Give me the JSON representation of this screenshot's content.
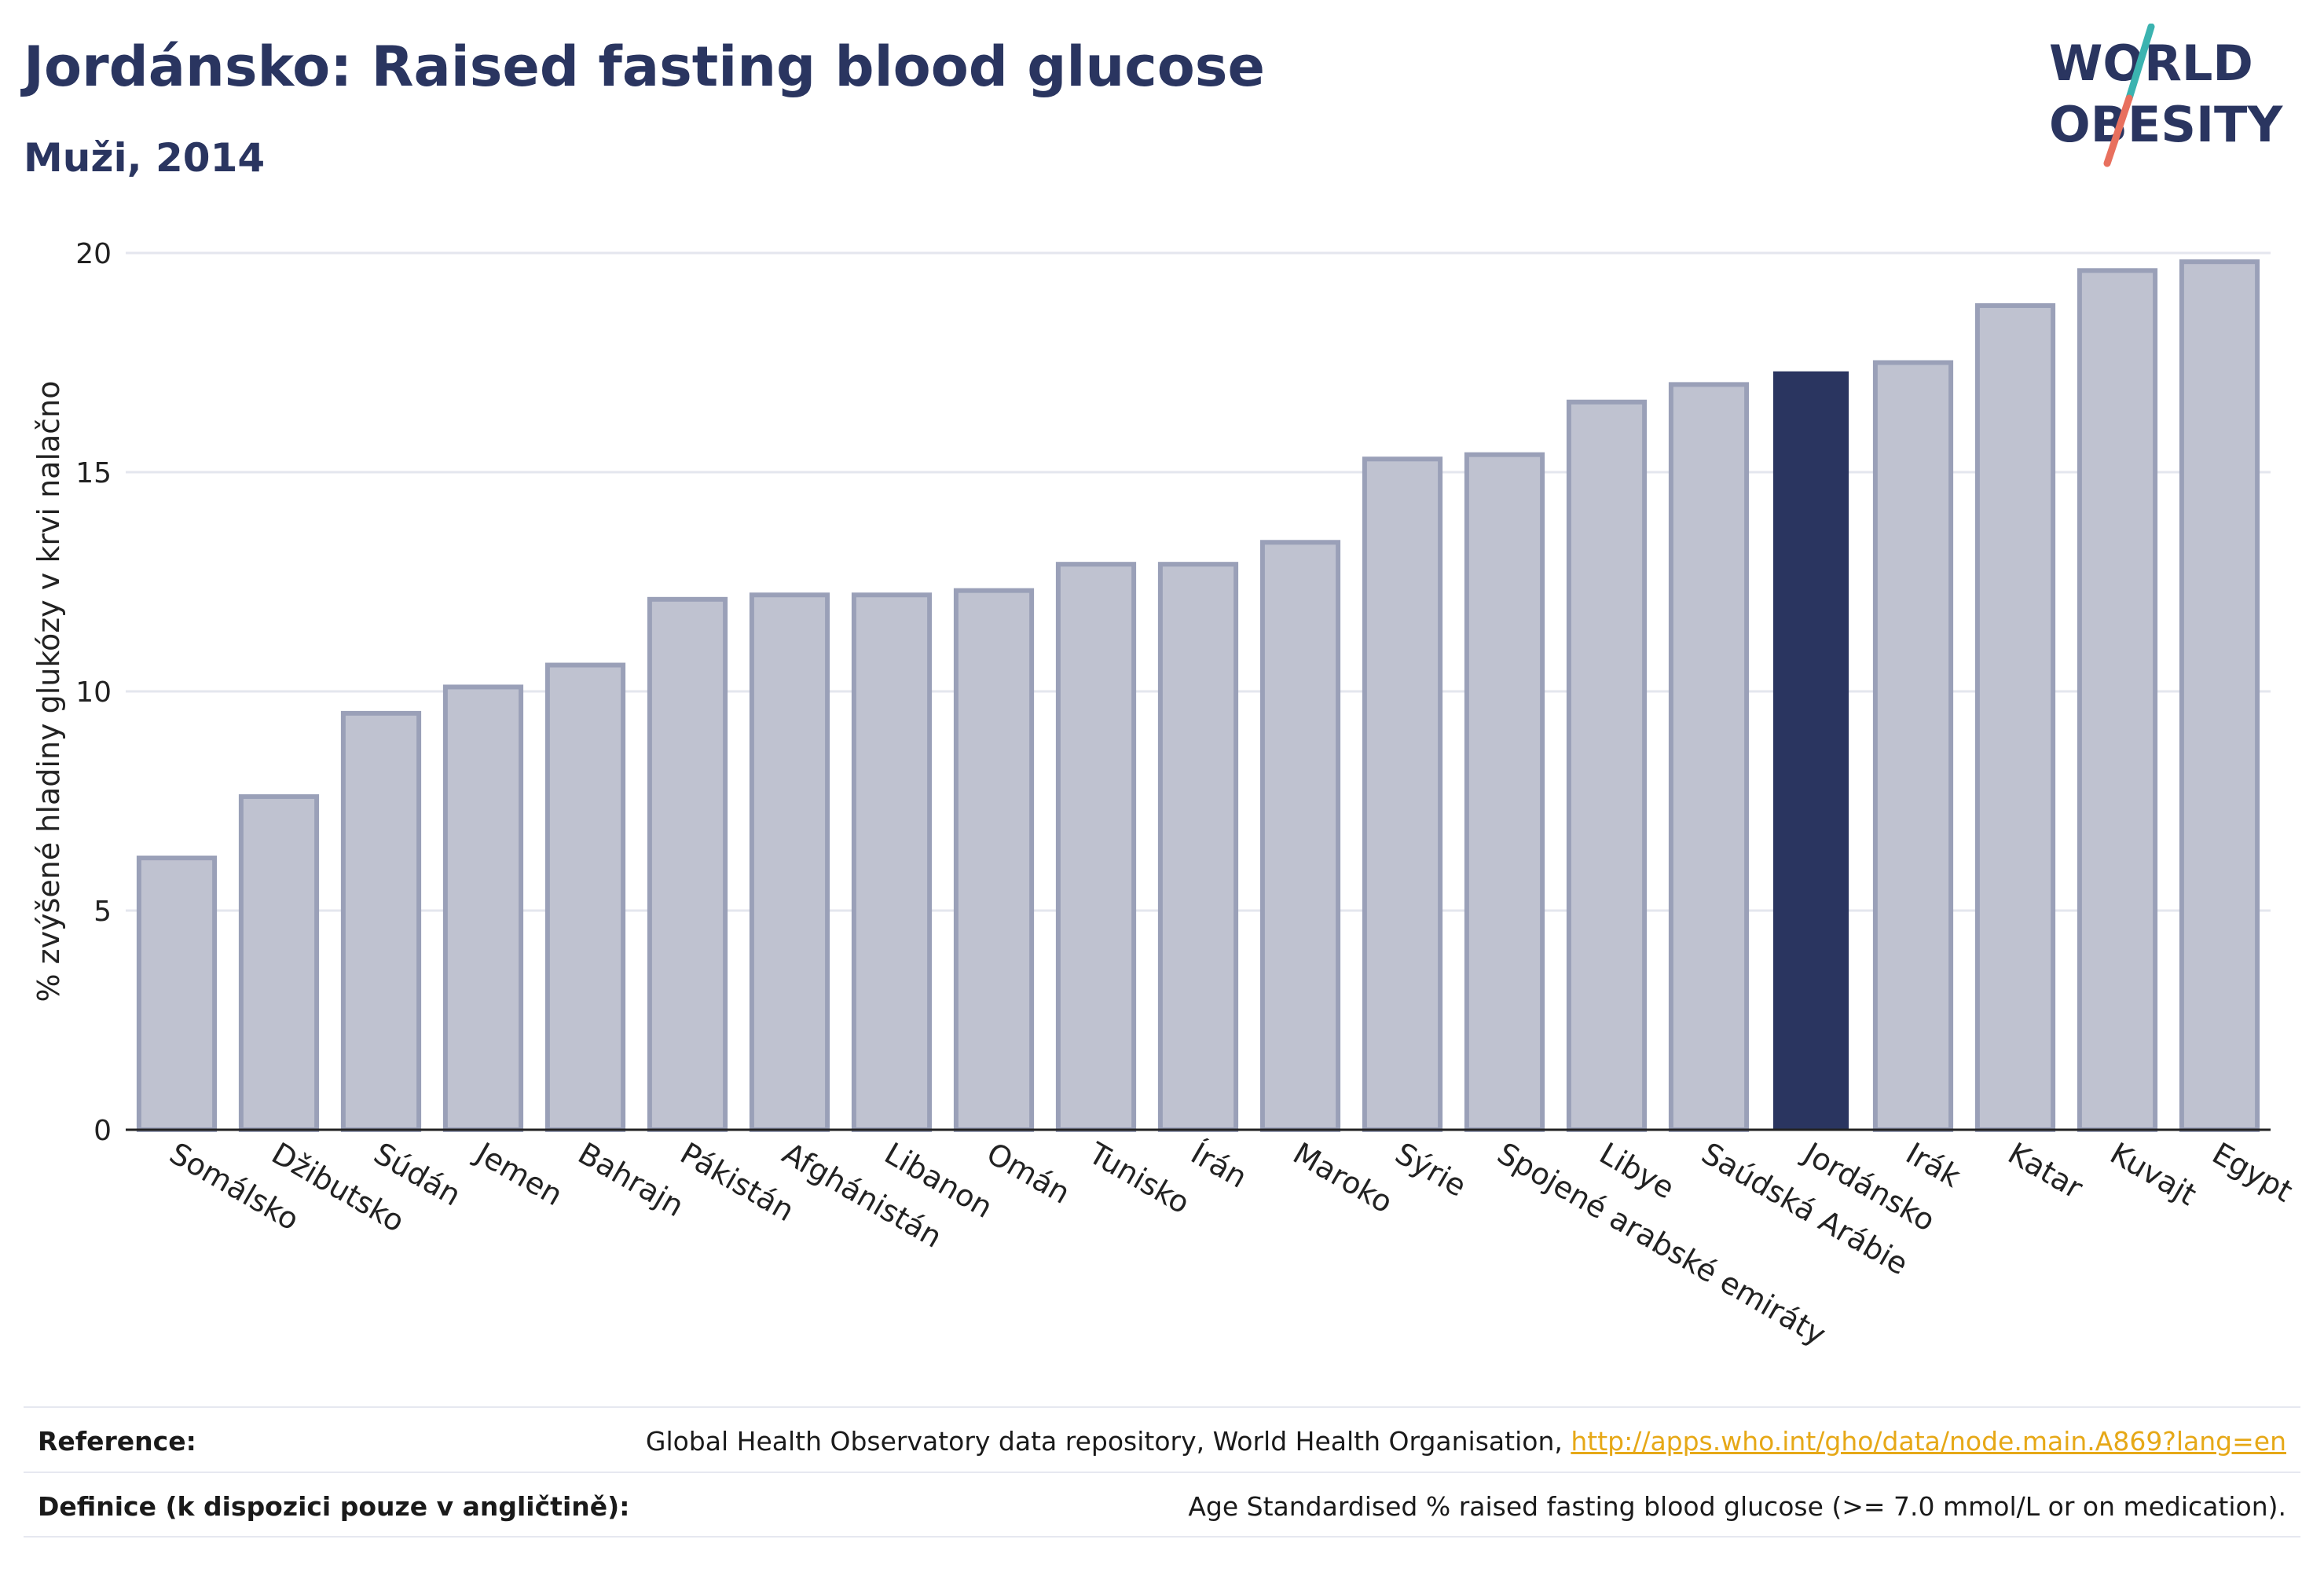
{
  "header": {
    "title": "Jordánsko: Raised fasting blood glucose",
    "subtitle": "Muži, 2014"
  },
  "logo": {
    "line1": "WORLD",
    "line2": "OBESITY"
  },
  "colors": {
    "highlight": "#2a3560",
    "bar_fill": "#bfc2d0",
    "bar_stroke": "#9aa0b8",
    "grid": "#e4e6ee",
    "axis": "#222222",
    "link": "#e6a817",
    "logo_teal": "#3bb3b0",
    "logo_coral": "#e8705e"
  },
  "chart_data": {
    "type": "bar",
    "ylabel": "% zvýšené hladiny glukózy v krvi nalačno",
    "xlabel": "",
    "ylim": [
      0,
      20
    ],
    "yticks": [
      0,
      5,
      10,
      15,
      20
    ],
    "grid": true,
    "highlight_category": "Jordánsko",
    "categories": [
      "Somálsko",
      "Džibutsko",
      "Súdán",
      "Jemen",
      "Bahrajn",
      "Pákistán",
      "Afghánistán",
      "Libanon",
      "Omán",
      "Tunisko",
      "Írán",
      "Maroko",
      "Sýrie",
      "Spojené arabské emiráty",
      "Libye",
      "Saúdská Arábie",
      "Jordánsko",
      "Irák",
      "Katar",
      "Kuvajt",
      "Egypt"
    ],
    "values": [
      6.2,
      7.6,
      9.5,
      10.1,
      10.6,
      12.1,
      12.2,
      12.2,
      12.3,
      12.9,
      12.9,
      13.4,
      15.3,
      15.4,
      16.6,
      17.0,
      17.3,
      17.5,
      18.8,
      19.6,
      19.8
    ]
  },
  "footer": {
    "reference_label": "Reference:",
    "reference_text": "Global Health Observatory data repository, World Health Organisation, ",
    "reference_link": "http://apps.who.int/gho/data/node.main.A869?lang=en",
    "definition_label": "Definice (k dispozici pouze v angličtině):",
    "definition_text": "Age Standardised % raised fasting blood glucose (>= 7.0 mmol/L or on medication)."
  }
}
